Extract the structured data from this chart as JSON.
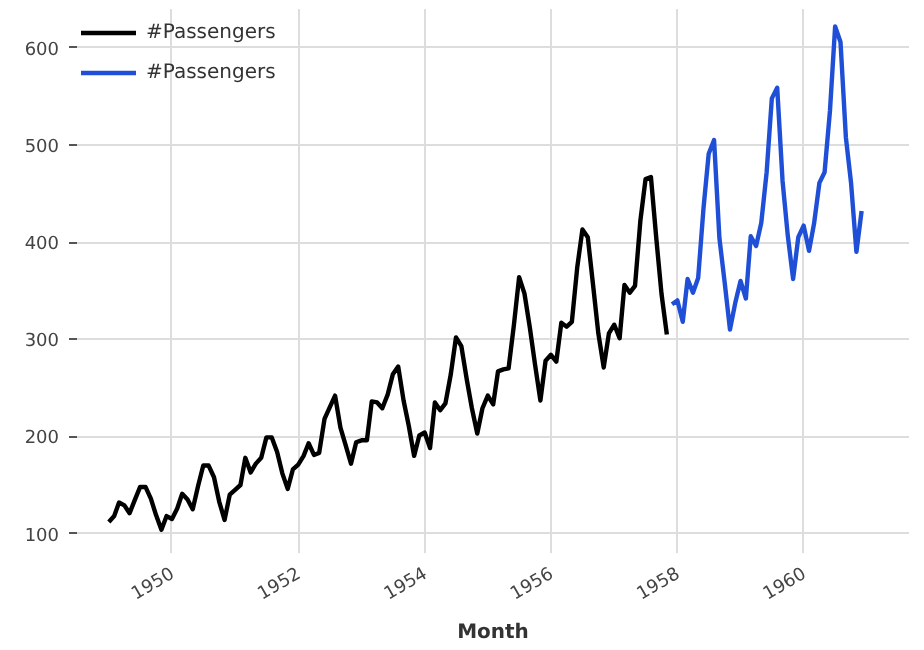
{
  "chart_data": {
    "type": "line",
    "xlabel": "Month",
    "legend": "top left",
    "grid": true,
    "xlim": [
      "1948-07",
      "1961-09"
    ],
    "ylim": [
      80,
      640
    ],
    "xticks": [
      "1950",
      "1952",
      "1954",
      "1956",
      "1958",
      "1960"
    ],
    "yticks": [
      100,
      200,
      300,
      400,
      500,
      600
    ],
    "series": [
      {
        "name": "#Passengers",
        "color": "#000000",
        "x": [
          "1949-01",
          "1949-02",
          "1949-03",
          "1949-04",
          "1949-05",
          "1949-06",
          "1949-07",
          "1949-08",
          "1949-09",
          "1949-10",
          "1949-11",
          "1949-12",
          "1950-01",
          "1950-02",
          "1950-03",
          "1950-04",
          "1950-05",
          "1950-06",
          "1950-07",
          "1950-08",
          "1950-09",
          "1950-10",
          "1950-11",
          "1950-12",
          "1951-01",
          "1951-02",
          "1951-03",
          "1951-04",
          "1951-05",
          "1951-06",
          "1951-07",
          "1951-08",
          "1951-09",
          "1951-10",
          "1951-11",
          "1951-12",
          "1952-01",
          "1952-02",
          "1952-03",
          "1952-04",
          "1952-05",
          "1952-06",
          "1952-07",
          "1952-08",
          "1952-09",
          "1952-10",
          "1952-11",
          "1952-12",
          "1953-01",
          "1953-02",
          "1953-03",
          "1953-04",
          "1953-05",
          "1953-06",
          "1953-07",
          "1953-08",
          "1953-09",
          "1953-10",
          "1953-11",
          "1953-12",
          "1954-01",
          "1954-02",
          "1954-03",
          "1954-04",
          "1954-05",
          "1954-06",
          "1954-07",
          "1954-08",
          "1954-09",
          "1954-10",
          "1954-11",
          "1954-12",
          "1955-01",
          "1955-02",
          "1955-03",
          "1955-04",
          "1955-05",
          "1955-06",
          "1955-07",
          "1955-08",
          "1955-09",
          "1955-10",
          "1955-11",
          "1955-12",
          "1956-01",
          "1956-02",
          "1956-03",
          "1956-04",
          "1956-05",
          "1956-06",
          "1956-07",
          "1956-08",
          "1956-09",
          "1956-10",
          "1956-11",
          "1956-12",
          "1957-01",
          "1957-02",
          "1957-03",
          "1957-04",
          "1957-05",
          "1957-06",
          "1957-07",
          "1957-08",
          "1957-09",
          "1957-10",
          "1957-11"
        ],
        "values": [
          112,
          118,
          132,
          129,
          121,
          135,
          148,
          148,
          136,
          119,
          104,
          118,
          115,
          126,
          141,
          135,
          125,
          149,
          170,
          170,
          158,
          133,
          114,
          140,
          145,
          150,
          178,
          163,
          172,
          178,
          199,
          199,
          184,
          162,
          146,
          166,
          171,
          180,
          193,
          181,
          183,
          218,
          230,
          242,
          209,
          191,
          172,
          194,
          196,
          196,
          236,
          235,
          229,
          243,
          264,
          272,
          237,
          211,
          180,
          201,
          204,
          188,
          235,
          227,
          234,
          264,
          302,
          293,
          259,
          229,
          203,
          229,
          242,
          233,
          267,
          269,
          270,
          315,
          364,
          347,
          312,
          274,
          237,
          278,
          284,
          277,
          317,
          313,
          318,
          374,
          413,
          405,
          355,
          306,
          271,
          306,
          315,
          301,
          356,
          348,
          355,
          422,
          465,
          467,
          404,
          347,
          305
        ]
      },
      {
        "name": "#Passengers",
        "color": "#1f4fd6",
        "x": [
          "1957-12",
          "1958-01",
          "1958-02",
          "1958-03",
          "1958-04",
          "1958-05",
          "1958-06",
          "1958-07",
          "1958-08",
          "1958-09",
          "1958-10",
          "1958-11",
          "1958-12",
          "1959-01",
          "1959-02",
          "1959-03",
          "1959-04",
          "1959-05",
          "1959-06",
          "1959-07",
          "1959-08",
          "1959-09",
          "1959-10",
          "1959-11",
          "1959-12",
          "1960-01",
          "1960-02",
          "1960-03",
          "1960-04",
          "1960-05",
          "1960-06",
          "1960-07",
          "1960-08",
          "1960-09",
          "1960-10",
          "1960-11",
          "1960-12"
        ],
        "values": [
          336,
          340,
          318,
          362,
          348,
          363,
          435,
          491,
          505,
          404,
          359,
          310,
          337,
          360,
          342,
          406,
          396,
          420,
          472,
          548,
          559,
          463,
          407,
          362,
          405,
          417,
          391,
          419,
          461,
          472,
          535,
          622,
          606,
          508,
          461,
          390,
          432
        ]
      }
    ]
  }
}
